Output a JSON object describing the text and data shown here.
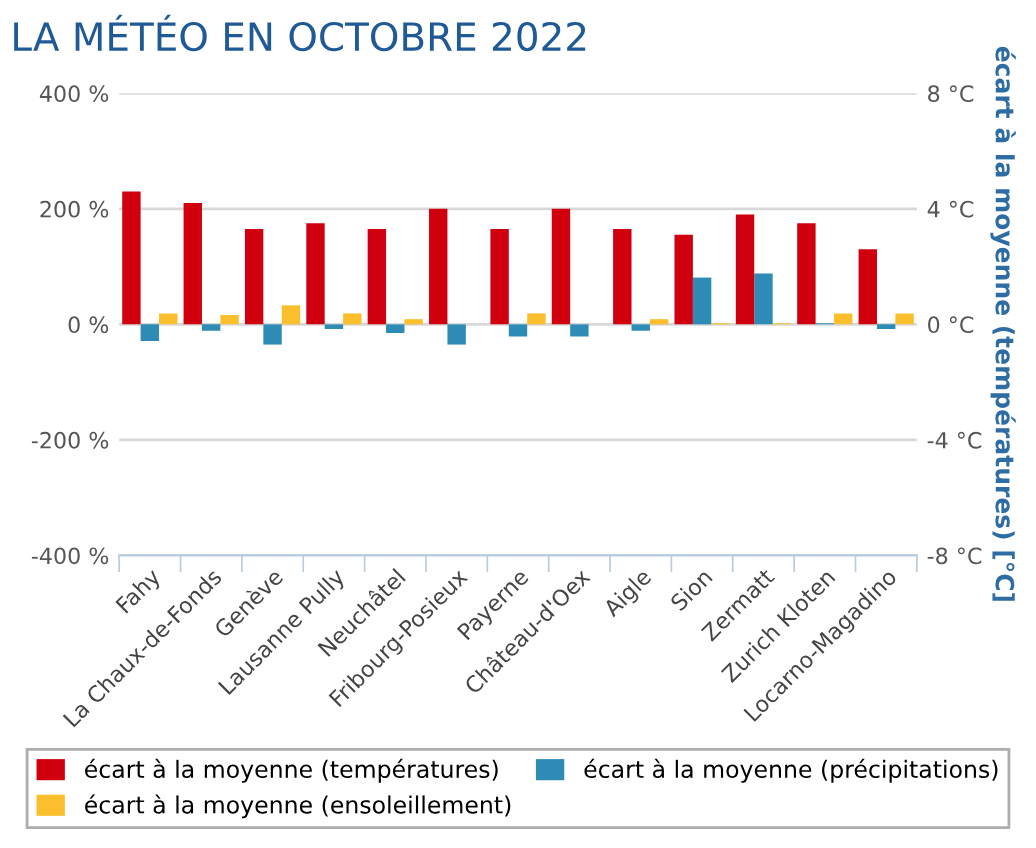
{
  "chart_data": {
    "type": "bar",
    "title": "LA MÉTÉO EN OCTOBRE 2022",
    "categories": [
      "Fahy",
      "La Chaux-de-Fonds",
      "Genève",
      "Lausanne Pully",
      "Neuchâtel",
      "Fribourg-Posieux",
      "Payerne",
      "Château-d'Oex",
      "Aigle",
      "Sion",
      "Zermatt",
      "Zurich Kloten",
      "Locarno-Magadino"
    ],
    "series": [
      {
        "name": "écart à la moyenne (températures)",
        "color": "#d0000f",
        "axis": "y2",
        "values": [
          4.6,
          4.2,
          3.3,
          3.5,
          3.3,
          4.0,
          3.3,
          4.0,
          3.3,
          3.1,
          3.8,
          3.5,
          2.6
        ]
      },
      {
        "name": "écart à la moyenne (précipitations)",
        "color": "#2e8bb5",
        "values": [
          -29,
          -11,
          -35,
          -8,
          -15,
          -35,
          -21,
          -21,
          -11,
          81,
          88,
          2,
          -8
        ]
      },
      {
        "name": "écart à la moyenne (ensoleillement)",
        "color": "#fbbf2e",
        "values": [
          19,
          16,
          33,
          19,
          9,
          null,
          19,
          null,
          9,
          2,
          2,
          19,
          19
        ]
      }
    ],
    "ylim": [
      -400,
      400
    ],
    "yticks": [
      {
        "value": -400,
        "label": "-400 %"
      },
      {
        "value": -200,
        "label": "-200 %"
      },
      {
        "value": 0,
        "label": "0 %"
      },
      {
        "value": 200,
        "label": "200 %"
      },
      {
        "value": 400,
        "label": "400 %"
      }
    ],
    "y2lim": [
      -8,
      8
    ],
    "y2ticks": [
      {
        "value": -8,
        "label": "-8 °C"
      },
      {
        "value": -4,
        "label": "-4 °C"
      },
      {
        "value": 0,
        "label": "0 °C"
      },
      {
        "value": 4,
        "label": "4 °C"
      },
      {
        "value": 8,
        "label": "8 °C"
      }
    ],
    "y2label": "écart à la moyenne (températures) [°C]",
    "grid": "y",
    "legend": "bottom"
  }
}
